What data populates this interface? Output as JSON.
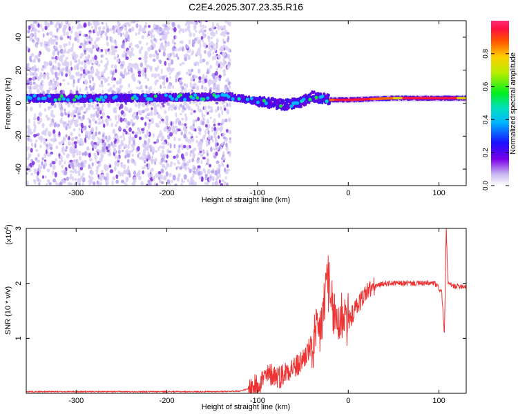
{
  "title": "C2E4.2025.307.23.35.R16",
  "chart_data": [
    {
      "type": "heatmap",
      "xlabel": "Height of straight line (km)",
      "ylabel": "Frequency (Hz)",
      "xlim": [
        -355,
        130
      ],
      "ylim": [
        -50,
        50
      ],
      "xticks": [
        -300,
        -200,
        -100,
        0,
        100
      ],
      "yticks": [
        -40,
        -20,
        0,
        20,
        40
      ],
      "grid": false,
      "description_points": {
        "band_center": [
          {
            "x": -355,
            "y": 3
          },
          {
            "x": -250,
            "y": 3
          },
          {
            "x": -130,
            "y": 4
          },
          {
            "x": -100,
            "y": 1
          },
          {
            "x": -70,
            "y": -1
          },
          {
            "x": -55,
            "y": 0
          },
          {
            "x": -40,
            "y": 4
          },
          {
            "x": -20,
            "y": 2
          },
          {
            "x": 0,
            "y": 2
          },
          {
            "x": 50,
            "y": 3
          },
          {
            "x": 100,
            "y": 3
          },
          {
            "x": 130,
            "y": 3
          }
        ],
        "scatter_region": {
          "x_from": -355,
          "x_to": -130,
          "y_from": -50,
          "y_to": 50
        }
      },
      "colorbar": {
        "label": "Normalized spectral amplitude",
        "range": [
          0.0,
          1.0
        ],
        "ticks": [
          "0.0",
          "0.2",
          "0.4",
          "0.6",
          "0.8"
        ],
        "tick_values": [
          0.0,
          0.2,
          0.4,
          0.6,
          0.8
        ]
      }
    },
    {
      "type": "line",
      "xlabel": "Height of straight line (km)",
      "ylabel": "SNR (10 * v/v)",
      "y_multiplier": "(x10",
      "y_multiplier_exp": "4",
      "y_multiplier_close": ")",
      "xlim": [
        -355,
        130
      ],
      "ylim": [
        0,
        3
      ],
      "xticks": [
        -300,
        -200,
        -100,
        0,
        100
      ],
      "yticks": [
        1,
        2,
        3
      ],
      "line_color": "#ee3333",
      "series": [
        {
          "name": "SNR",
          "points": [
            [
              -355,
              0.03
            ],
            [
              -300,
              0.03
            ],
            [
              -250,
              0.03
            ],
            [
              -200,
              0.03
            ],
            [
              -150,
              0.03
            ],
            [
              -120,
              0.04
            ],
            [
              -105,
              0.1
            ],
            [
              -95,
              0.25
            ],
            [
              -85,
              0.35
            ],
            [
              -75,
              0.3
            ],
            [
              -65,
              0.45
            ],
            [
              -55,
              0.5
            ],
            [
              -45,
              0.75
            ],
            [
              -38,
              0.9
            ],
            [
              -32,
              1.1
            ],
            [
              -27,
              1.5
            ],
            [
              -23,
              2.3
            ],
            [
              -20,
              1.6
            ],
            [
              -15,
              1.4
            ],
            [
              -10,
              1.3
            ],
            [
              -5,
              1.5
            ],
            [
              0,
              1.3
            ],
            [
              10,
              1.6
            ],
            [
              20,
              1.85
            ],
            [
              30,
              1.95
            ],
            [
              40,
              2.0
            ],
            [
              60,
              2.0
            ],
            [
              80,
              2.0
            ],
            [
              95,
              2.0
            ],
            [
              103,
              1.85
            ],
            [
              106,
              1.05
            ],
            [
              108,
              3.0
            ],
            [
              110,
              2.0
            ],
            [
              115,
              1.95
            ],
            [
              130,
              1.95
            ]
          ]
        }
      ]
    }
  ]
}
